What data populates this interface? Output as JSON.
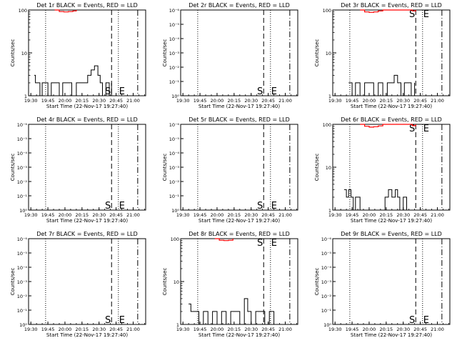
{
  "chart_data": [
    {
      "type": "line",
      "title": "Det 1r BLACK = Events, RED = LLD",
      "xlabel": "Start Time (22-Nov-17 19:27:40)",
      "ylabel": "Counts/sec",
      "x_ticks": [
        "19:30",
        "19:45",
        "20:00",
        "20:15",
        "20:30",
        "20:45",
        "21:00"
      ],
      "y_scale": "log",
      "y_ticks": [
        "1",
        "10",
        "100"
      ],
      "ylim": [
        1,
        100
      ],
      "xlim": [
        "19:28",
        "21:11"
      ],
      "markers": [
        {
          "time": "19:43",
          "style": "dotted"
        },
        {
          "time": "20:41",
          "style": "dashed",
          "label": "S"
        },
        {
          "time": "20:47",
          "style": "dotted",
          "label": "E"
        },
        {
          "time": "21:04",
          "style": "dashdot"
        }
      ],
      "series": [
        {
          "name": "Events",
          "color": "#000000",
          "x": [
            "19:33",
            "19:34",
            "19:36",
            "19:38",
            "19:40",
            "19:42",
            "19:45",
            "19:48",
            "19:52",
            "19:55",
            "19:58",
            "20:02",
            "20:06",
            "20:10",
            "20:14",
            "20:18",
            "20:20",
            "20:23",
            "20:26",
            "20:29",
            "20:31",
            "20:33",
            "20:36",
            "20:39",
            "20:41"
          ],
          "y": [
            3,
            2,
            2,
            1,
            2,
            2,
            1,
            2,
            2,
            1,
            2,
            2,
            1,
            2,
            2,
            2,
            3,
            4,
            5,
            3,
            2,
            1,
            2,
            1,
            2
          ]
        },
        {
          "name": "LLD",
          "color": "#ff0000",
          "x": [
            "19:51",
            "19:55",
            "19:59",
            "20:03",
            "20:07",
            "20:10"
          ],
          "y": [
            100,
            92,
            90,
            92,
            95,
            100
          ]
        }
      ]
    },
    {
      "type": "line",
      "title": "Det 2r BLACK = Events, RED = LLD",
      "xlabel": "Start Time (22-Nov-17 19:27:40)",
      "ylabel": "Counts/sec",
      "x_ticks": [
        "19:30",
        "19:45",
        "20:00",
        "20:15",
        "20:30",
        "20:45",
        "21:00"
      ],
      "y_scale": "log",
      "y_ticks": [
        "10⁰",
        "10⁻¹",
        "10⁻²",
        "10⁻³",
        "10⁻⁴",
        "10⁻⁵",
        "10⁻⁶"
      ],
      "xlim": [
        "19:28",
        "21:11"
      ],
      "markers": [
        {
          "time": "19:43",
          "style": "dotted"
        },
        {
          "time": "20:41",
          "style": "dashed",
          "label": "S"
        },
        {
          "time": "20:47",
          "style": "dotted",
          "label": "E"
        },
        {
          "time": "21:04",
          "style": "dashdot"
        }
      ],
      "series": []
    },
    {
      "type": "line",
      "title": "Det 3r BLACK = Events, RED = LLD",
      "xlabel": "Start Time (22-Nov-17 19:27:40)",
      "ylabel": "Counts/sec",
      "x_ticks": [
        "19:30",
        "19:45",
        "20:00",
        "20:15",
        "20:30",
        "20:45",
        "21:00"
      ],
      "y_scale": "log",
      "y_ticks": [
        "1",
        "10",
        "100"
      ],
      "ylim": [
        1,
        100
      ],
      "xlim": [
        "19:28",
        "21:11"
      ],
      "markers": [
        {
          "time": "19:43",
          "style": "dotted"
        },
        {
          "time": "20:41",
          "style": "dashed",
          "label": "S"
        },
        {
          "time": "20:47",
          "style": "dotted",
          "label": "E"
        },
        {
          "time": "21:04",
          "style": "dashdot"
        }
      ],
      "series": [
        {
          "name": "Events",
          "color": "#000000",
          "x": [
            "19:42",
            "19:45",
            "19:48",
            "19:52",
            "19:56",
            "20:00",
            "20:04",
            "20:08",
            "20:12",
            "20:16",
            "20:19",
            "20:22",
            "20:25",
            "20:28",
            "20:31",
            "20:34",
            "20:37",
            "20:40"
          ],
          "y": [
            2,
            1,
            2,
            1,
            2,
            2,
            1,
            2,
            1,
            2,
            2,
            3,
            2,
            1,
            2,
            2,
            1,
            2
          ]
        },
        {
          "name": "LLD",
          "color": "#ff0000",
          "x": [
            "19:52",
            "19:56",
            "20:00",
            "20:04",
            "20:08",
            "20:12",
            "20:35",
            "20:38",
            "20:41"
          ],
          "y": [
            100,
            90,
            88,
            90,
            95,
            100,
            100,
            95,
            100
          ]
        }
      ]
    },
    {
      "type": "line",
      "title": "Det 4r BLACK = Events, RED = LLD",
      "xlabel": "Start Time (22-Nov-17 19:27:40)",
      "ylabel": "Counts/sec",
      "x_ticks": [
        "19:30",
        "19:45",
        "20:00",
        "20:15",
        "20:30",
        "20:45",
        "21:00"
      ],
      "y_scale": "log",
      "y_ticks": [
        "10⁰",
        "10⁻¹",
        "10⁻²",
        "10⁻³",
        "10⁻⁴",
        "10⁻⁵",
        "10⁻⁶"
      ],
      "xlim": [
        "19:28",
        "21:11"
      ],
      "markers": [
        {
          "time": "19:43",
          "style": "dotted"
        },
        {
          "time": "20:41",
          "style": "dashed",
          "label": "S"
        },
        {
          "time": "20:47",
          "style": "dotted",
          "label": "E"
        },
        {
          "time": "21:04",
          "style": "dashdot"
        }
      ],
      "series": []
    },
    {
      "type": "line",
      "title": "Det 5r BLACK = Events, RED = LLD",
      "xlabel": "Start Time (22-Nov-17 19:27:40)",
      "ylabel": "Counts/sec",
      "x_ticks": [
        "19:30",
        "19:45",
        "20:00",
        "20:15",
        "20:30",
        "20:45",
        "21:00"
      ],
      "y_scale": "log",
      "y_ticks": [
        "10⁰",
        "10⁻¹",
        "10⁻²",
        "10⁻³",
        "10⁻⁴",
        "10⁻⁵",
        "10⁻⁶"
      ],
      "xlim": [
        "19:28",
        "21:11"
      ],
      "markers": [
        {
          "time": "19:43",
          "style": "dotted"
        },
        {
          "time": "20:41",
          "style": "dashed",
          "label": "S"
        },
        {
          "time": "20:47",
          "style": "dotted",
          "label": "E"
        },
        {
          "time": "21:04",
          "style": "dashdot"
        }
      ],
      "series": []
    },
    {
      "type": "line",
      "title": "Det 6r BLACK = Events, RED = LLD",
      "xlabel": "Start Time (22-Nov-17 19:27:40)",
      "ylabel": "Counts/sec",
      "x_ticks": [
        "19:30",
        "19:45",
        "20:00",
        "20:15",
        "20:30",
        "20:45",
        "21:00"
      ],
      "y_scale": "log",
      "y_ticks": [
        "1",
        "10",
        "100"
      ],
      "ylim": [
        1,
        100
      ],
      "xlim": [
        "19:28",
        "21:11"
      ],
      "markers": [
        {
          "time": "19:43",
          "style": "dotted"
        },
        {
          "time": "20:41",
          "style": "dashed",
          "label": "S"
        },
        {
          "time": "20:47",
          "style": "dotted",
          "label": "E"
        },
        {
          "time": "21:04",
          "style": "dashdot"
        }
      ],
      "series": [
        {
          "name": "Events",
          "color": "#000000",
          "x": [
            "19:38",
            "19:40",
            "19:42",
            "19:44",
            "19:46",
            "19:48",
            "19:52",
            "19:58",
            "20:04",
            "20:10",
            "20:14",
            "20:17",
            "20:20",
            "20:23",
            "20:25",
            "20:27",
            "20:30",
            "20:33"
          ],
          "y": [
            3,
            2,
            3,
            2,
            1,
            2,
            1,
            1,
            1,
            1,
            2,
            3,
            2,
            3,
            2,
            1,
            2,
            1
          ]
        },
        {
          "name": "LLD",
          "color": "#ff0000",
          "x": [
            "19:52",
            "19:56",
            "20:00",
            "20:04",
            "20:08",
            "20:12",
            "20:35",
            "20:38",
            "20:41"
          ],
          "y": [
            100,
            90,
            86,
            88,
            92,
            100,
            100,
            93,
            100
          ]
        }
      ]
    },
    {
      "type": "line",
      "title": "Det 7r BLACK = Events, RED = LLD",
      "xlabel": "Start Time (22-Nov-17 19:27:40)",
      "ylabel": "Counts/sec",
      "x_ticks": [
        "19:30",
        "19:45",
        "20:00",
        "20:15",
        "20:30",
        "20:45",
        "21:00"
      ],
      "y_scale": "log",
      "y_ticks": [
        "10⁰",
        "10⁻¹",
        "10⁻²",
        "10⁻³",
        "10⁻⁴",
        "10⁻⁵",
        "10⁻⁶"
      ],
      "xlim": [
        "19:28",
        "21:11"
      ],
      "markers": [
        {
          "time": "19:43",
          "style": "dotted"
        },
        {
          "time": "20:41",
          "style": "dashed",
          "label": "S"
        },
        {
          "time": "20:47",
          "style": "dotted",
          "label": "E"
        },
        {
          "time": "21:04",
          "style": "dashdot"
        }
      ],
      "series": []
    },
    {
      "type": "line",
      "title": "Det 8r BLACK = Events, RED = LLD",
      "xlabel": "Start Time (22-Nov-17 19:27:40)",
      "ylabel": "Counts/sec",
      "x_ticks": [
        "19:30",
        "19:45",
        "20:00",
        "20:15",
        "20:30",
        "20:45",
        "21:00"
      ],
      "y_scale": "log",
      "y_ticks": [
        "1",
        "10",
        "100"
      ],
      "ylim": [
        1,
        100
      ],
      "xlim": [
        "19:28",
        "21:11"
      ],
      "markers": [
        {
          "time": "19:43",
          "style": "dotted"
        },
        {
          "time": "20:41",
          "style": "dashed",
          "label": "S"
        },
        {
          "time": "20:47",
          "style": "dotted",
          "label": "E"
        },
        {
          "time": "21:04",
          "style": "dashdot"
        }
      ],
      "series": [
        {
          "name": "Events",
          "color": "#000000",
          "x": [
            "19:35",
            "19:37",
            "19:40",
            "19:44",
            "19:48",
            "19:52",
            "19:56",
            "20:00",
            "20:04",
            "20:08",
            "20:12",
            "20:15",
            "20:20",
            "20:24",
            "20:27",
            "20:30",
            "20:34",
            "20:38",
            "20:42",
            "20:46",
            "20:50"
          ],
          "y": [
            3,
            2,
            2,
            1,
            2,
            1,
            2,
            1,
            2,
            1,
            2,
            2,
            1,
            4,
            2,
            1,
            2,
            2,
            1,
            2,
            1
          ]
        },
        {
          "name": "LLD",
          "color": "#ff0000",
          "x": [
            "19:58",
            "20:02",
            "20:06",
            "20:10",
            "20:14"
          ],
          "y": [
            100,
            92,
            90,
            92,
            100
          ]
        }
      ]
    },
    {
      "type": "line",
      "title": "Det 9r BLACK = Events, RED = LLD",
      "xlabel": "Start Time (22-Nov-17 19:27:40)",
      "ylabel": "Counts/sec",
      "x_ticks": [
        "19:30",
        "19:45",
        "20:00",
        "20:15",
        "20:30",
        "20:45",
        "21:00"
      ],
      "y_scale": "log",
      "y_ticks": [
        "10⁰",
        "10⁻¹",
        "10⁻²",
        "10⁻³",
        "10⁻⁴",
        "10⁻⁵",
        "10⁻⁶"
      ],
      "xlim": [
        "19:28",
        "21:11"
      ],
      "markers": [
        {
          "time": "19:43",
          "style": "dotted"
        },
        {
          "time": "20:41",
          "style": "dashed",
          "label": "S"
        },
        {
          "time": "20:47",
          "style": "dotted",
          "label": "E"
        },
        {
          "time": "21:04",
          "style": "dashdot"
        }
      ],
      "series": []
    }
  ]
}
